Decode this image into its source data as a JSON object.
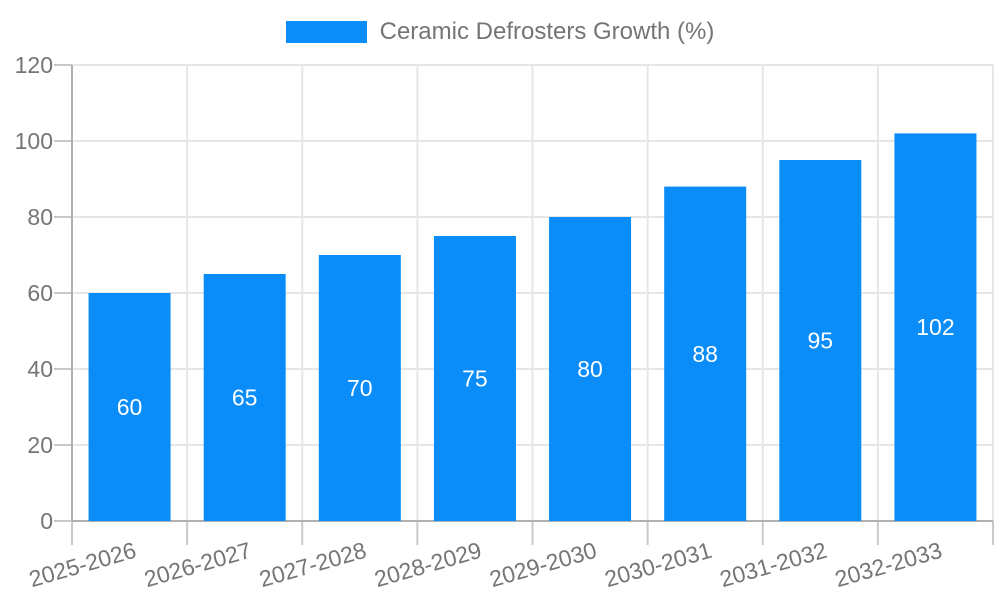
{
  "legend": {
    "label": "Ceramic Defrosters Growth (%)"
  },
  "colors": {
    "bar": "#0a8df9",
    "grid": "#e6e6e6",
    "tick": "#c9c9c9",
    "axis": "#b0b0b0",
    "label_text": "#757575",
    "bar_label_text": "#ffffff",
    "background": "#ffffff"
  },
  "chart_data": {
    "type": "bar",
    "title": "",
    "categories": [
      "2025-2026",
      "2026-2027",
      "2027-2028",
      "2028-2029",
      "2029-2030",
      "2030-2031",
      "2031-2032",
      "2032-2033"
    ],
    "series": [
      {
        "name": "Ceramic Defrosters Growth (%)",
        "values": [
          60,
          65,
          70,
          75,
          80,
          88,
          95,
          102
        ]
      }
    ],
    "xlabel": "",
    "ylabel": "",
    "ylim": [
      0,
      120
    ],
    "yticks": [
      0,
      20,
      40,
      60,
      80,
      100,
      120
    ],
    "grid": true,
    "legend_position": "top",
    "bar_value_labels_shown": true,
    "x_tick_rotation_deg": -16
  }
}
